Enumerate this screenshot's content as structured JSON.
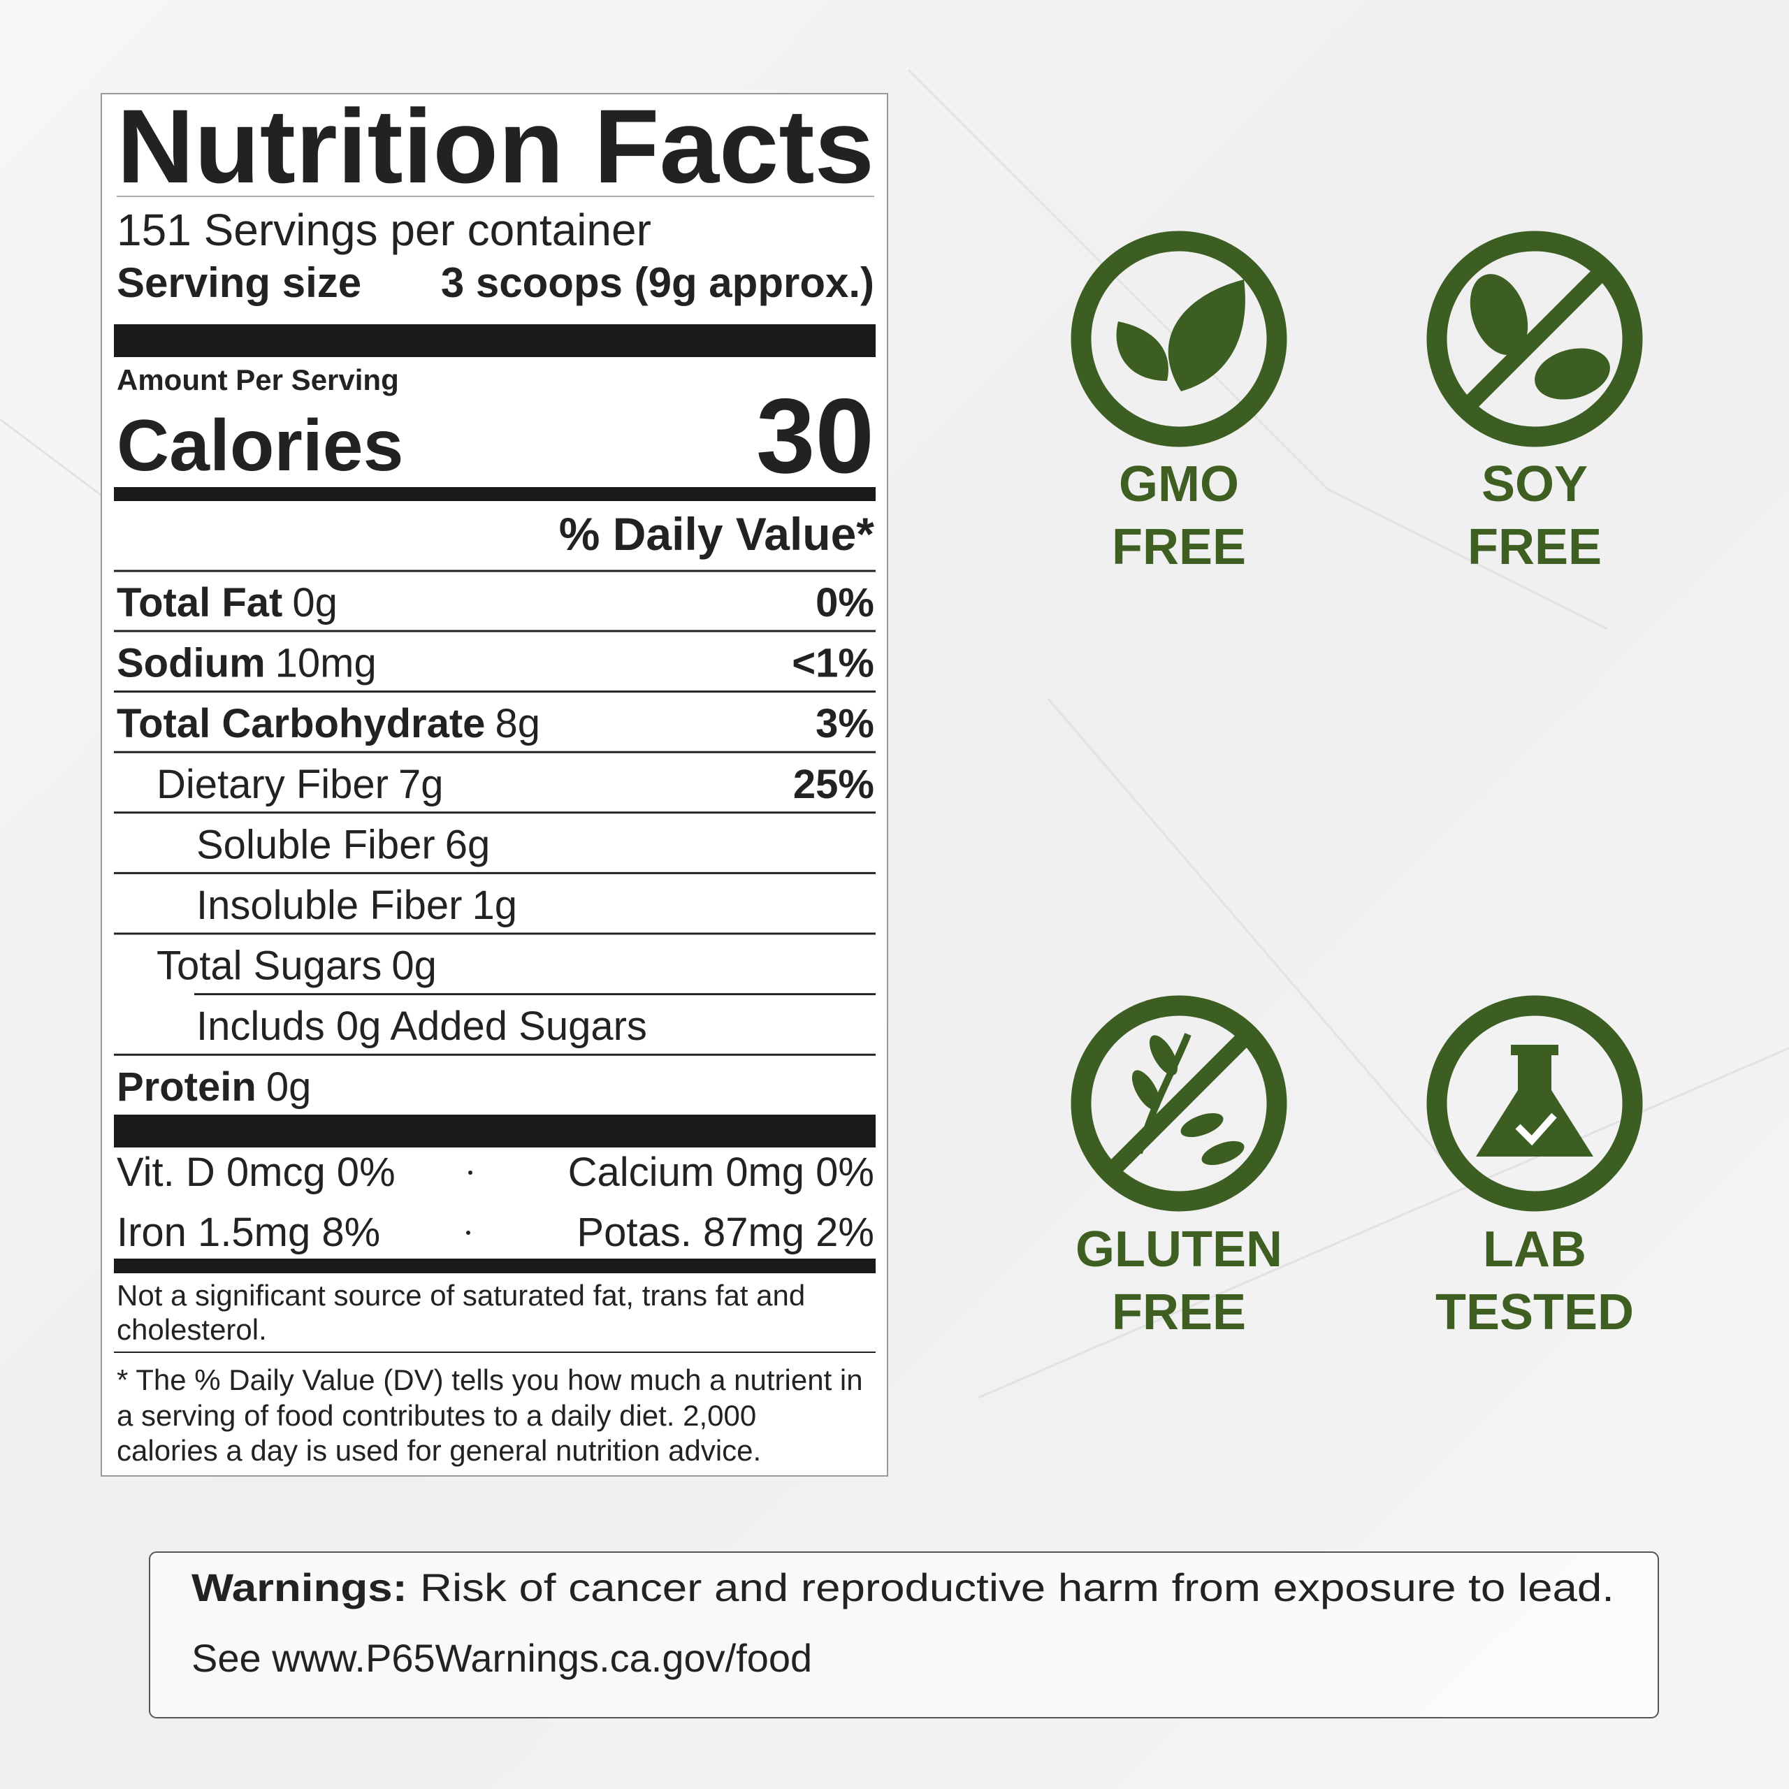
{
  "label": {
    "title": "Nutrition Facts",
    "servings": "151 Servings per container",
    "serving_size_label": "Serving size",
    "serving_size": "3 scoops (9g approx.)",
    "amount_per_serving": "Amount Per Serving",
    "calories_label": "Calories",
    "calories": 30,
    "daily_value_header": "% Daily Value*",
    "nutrients": [
      {
        "name": "Total Fat",
        "amount": "0g",
        "dv": "0%"
      },
      {
        "name": "Sodium",
        "amount": "10mg",
        "dv": "<1%"
      },
      {
        "name": "Total Carbohydrate",
        "amount": "8g",
        "dv": "3%"
      },
      {
        "name": "Dietary Fiber",
        "amount": "7g",
        "dv": "25%"
      },
      {
        "name": "Soluble Fiber",
        "amount": "6g"
      },
      {
        "name": "Insoluble Fiber",
        "amount": "1g"
      },
      {
        "name": "Total Sugars",
        "amount": "0g"
      },
      {
        "name": "Includs 0g Added Sugars"
      },
      {
        "name": "Protein",
        "amount": "0g"
      }
    ],
    "vitamins": [
      [
        "Vit. D 0mcg 0%",
        "Calcium 0mg 0%"
      ],
      [
        "Iron 1.5mg 8%",
        "Potas. 87mg 2%"
      ]
    ],
    "note": [
      "Not a significant source of saturated fat, trans fat and",
      "cholesterol."
    ],
    "footnote": [
      "* The % Daily Value (DV) tells you how much a nutrient in",
      "a serving of food contributes to a daily diet. 2,000",
      "calories a day is used for general nutrition advice."
    ]
  },
  "badges": [
    [
      "GMO",
      "FREE"
    ],
    [
      "SOY",
      "FREE"
    ],
    [
      "GLUTEN",
      "FREE"
    ],
    [
      "LAB",
      "TESTED"
    ]
  ],
  "warning": {
    "label": "Warnings:",
    "text": "Risk of cancer and reproductive harm from exposure to lead.",
    "link": "See www.P65Warnings.ca.gov/food"
  }
}
